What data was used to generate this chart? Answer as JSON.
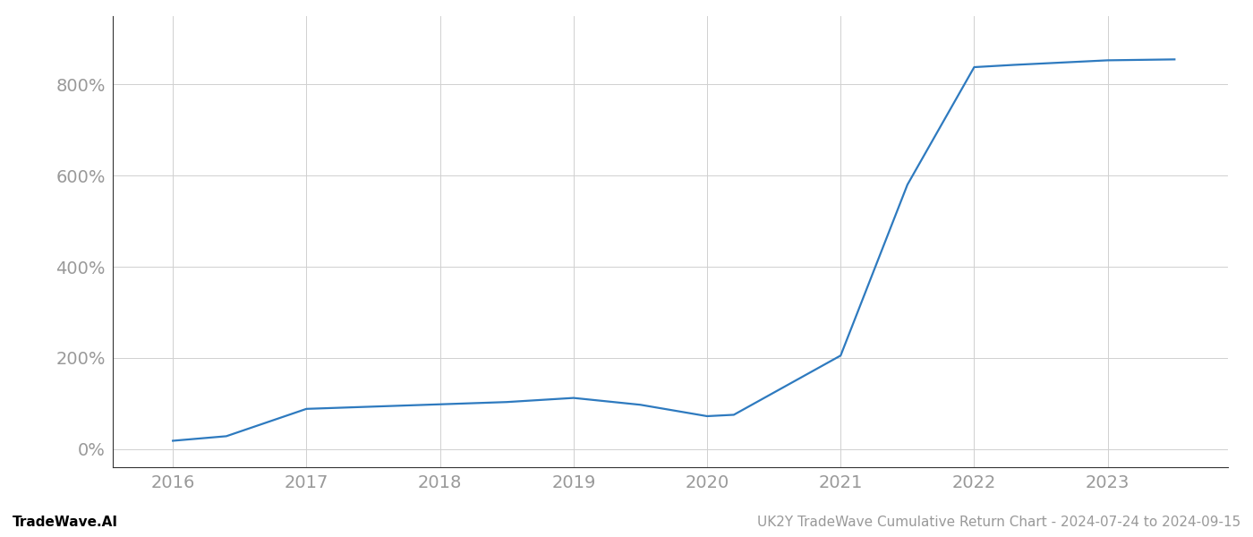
{
  "x_values": [
    2016.0,
    2016.4,
    2017.0,
    2017.5,
    2018.0,
    2018.5,
    2019.0,
    2019.5,
    2020.0,
    2020.2,
    2021.0,
    2021.5,
    2022.0,
    2022.3,
    2023.0,
    2023.5
  ],
  "y_values": [
    18,
    28,
    88,
    93,
    98,
    103,
    112,
    97,
    72,
    75,
    205,
    580,
    838,
    843,
    853,
    855
  ],
  "line_color": "#2e7abf",
  "line_width": 1.6,
  "background_color": "#ffffff",
  "grid_color": "#d0d0d0",
  "title": "UK2Y TradeWave Cumulative Return Chart - 2024-07-24 to 2024-09-15",
  "footer_left": "TradeWave.AI",
  "xlim": [
    2015.55,
    2023.9
  ],
  "ylim": [
    -40,
    950
  ],
  "yticks": [
    0,
    200,
    400,
    600,
    800
  ],
  "xticks": [
    2016,
    2017,
    2018,
    2019,
    2020,
    2021,
    2022,
    2023
  ],
  "tick_color": "#999999",
  "spine_color": "#333333",
  "footer_left_color": "#000000",
  "footer_right_color": "#999999",
  "footer_fontsize": 11,
  "tick_fontsize": 14
}
